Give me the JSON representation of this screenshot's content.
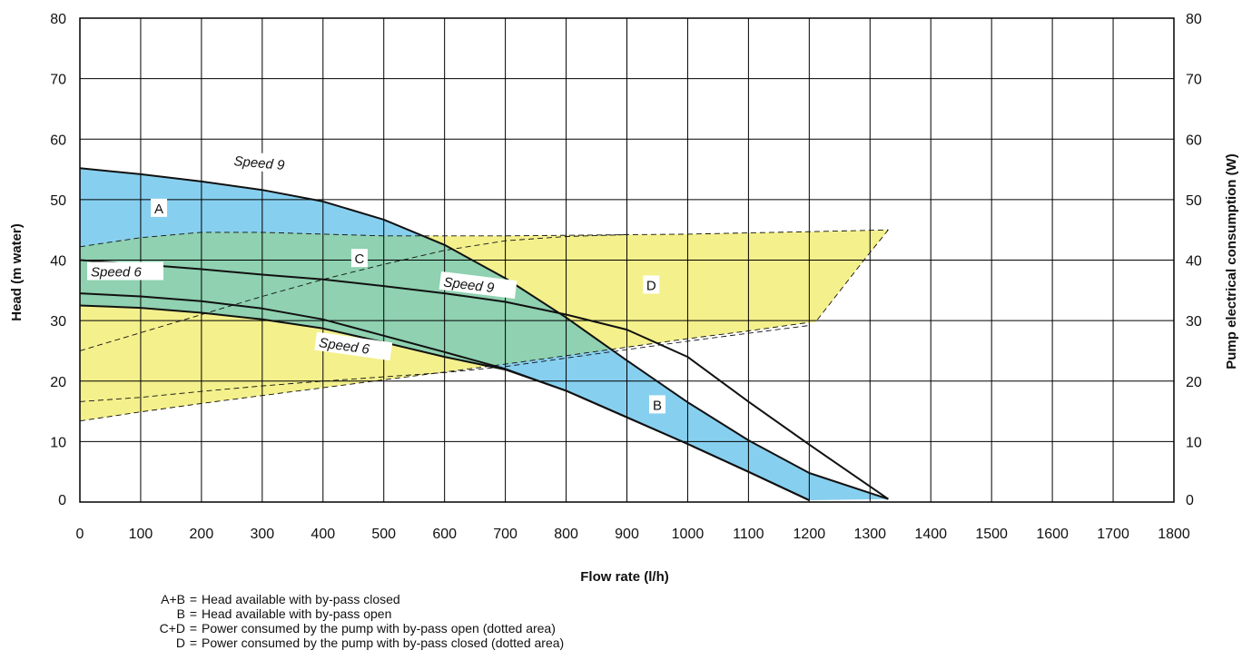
{
  "chart_data": {
    "type": "line",
    "xlabel": "Flow rate (l/h)",
    "ylabel": "Head (m water)",
    "y2label": "Pump electrical consumption (W)",
    "xlim": [
      0,
      1800
    ],
    "ylim": [
      0,
      80
    ],
    "y2lim": [
      0,
      80
    ],
    "grid": true,
    "x_ticks": [
      "0",
      "100",
      "200",
      "300",
      "400",
      "500",
      "600",
      "700",
      "800",
      "900",
      "1000",
      "1100",
      "1200",
      "1300",
      "1400",
      "1500",
      "1600",
      "1700",
      "1800"
    ],
    "y_ticks": [
      "0",
      "10",
      "20",
      "30",
      "40",
      "50",
      "60",
      "70",
      "80"
    ],
    "y2_ticks": [
      "0",
      "10",
      "20",
      "30",
      "40",
      "50",
      "60",
      "70",
      "80"
    ],
    "colors": {
      "blue": "#87cfef",
      "yellow": "#f4f08c",
      "green": "#8fd1b0",
      "line": "#111111",
      "grid": "#000000"
    },
    "series": [
      {
        "name": "Speed 9",
        "axis": "head",
        "style": "solid",
        "x": [
          0,
          100,
          200,
          300,
          400,
          500,
          600,
          700,
          800,
          900,
          1000,
          1100,
          1200,
          1330
        ],
        "y": [
          55.2,
          54.2,
          53.0,
          51.6,
          49.7,
          46.7,
          42.5,
          37.0,
          30.5,
          23.4,
          16.5,
          10.2,
          4.8,
          0.5
        ]
      },
      {
        "name": "Speed 6",
        "axis": "head",
        "style": "solid",
        "x": [
          0,
          100,
          200,
          300,
          400,
          500,
          600,
          700,
          800,
          900,
          1000,
          1100,
          1200
        ],
        "y": [
          34.5,
          34.0,
          33.2,
          32.0,
          30.2,
          27.5,
          24.8,
          22.0,
          18.4,
          14.0,
          9.6,
          5.0,
          0.3
        ]
      },
      {
        "name": "",
        "axis": "head",
        "style": "solid",
        "x": [
          0,
          100,
          200,
          300,
          400,
          500,
          600,
          700,
          800,
          900,
          1000,
          1100,
          1200
        ],
        "y": [
          32.5,
          32.1,
          31.3,
          30.2,
          28.7,
          26.4,
          24.0,
          21.9,
          18.4,
          14.0,
          9.6,
          5.0,
          0.3
        ]
      },
      {
        "name": "",
        "axis": "head",
        "style": "solid",
        "x": [
          0,
          100,
          200,
          300,
          400,
          500,
          600,
          700,
          800,
          900,
          1000,
          1100,
          1200,
          1330
        ],
        "y": [
          40.0,
          39.3,
          38.5,
          37.6,
          36.8,
          35.7,
          34.5,
          33.1,
          31.0,
          28.5,
          24.0,
          16.6,
          9.5,
          0.5
        ]
      },
      {
        "name": "",
        "axis": "power",
        "style": "dashed",
        "x": [
          0,
          100,
          200,
          300,
          400,
          500,
          600,
          700,
          800,
          900,
          1000,
          1100,
          1200,
          1330
        ],
        "y": [
          42.2,
          43.7,
          44.6,
          44.6,
          44.3,
          44.0,
          44.0,
          44.0,
          44.1,
          44.2,
          44.3,
          44.5,
          44.7,
          45.0
        ]
      },
      {
        "name": "",
        "axis": "power",
        "style": "dashed",
        "x": [
          0,
          100,
          200,
          300,
          400,
          500,
          600,
          700,
          800,
          900,
          1000,
          1100,
          1200
        ],
        "y": [
          16.6,
          17.3,
          18.3,
          19.2,
          20.0,
          20.7,
          21.4,
          22.4,
          23.8,
          25.2,
          26.6,
          27.9,
          29.2
        ]
      },
      {
        "name": "",
        "axis": "power",
        "style": "dashed",
        "x": [
          0,
          100,
          200,
          300,
          400,
          500,
          600,
          700,
          800,
          900,
          1000,
          1100,
          1200
        ],
        "y": [
          13.4,
          14.9,
          16.3,
          17.6,
          18.9,
          20.2,
          21.5,
          22.8,
          24.2,
          25.6,
          27.0,
          28.3,
          29.7
        ]
      },
      {
        "name": "",
        "axis": "power",
        "style": "dashed",
        "x": [
          0,
          100,
          200,
          300,
          400,
          500,
          600,
          700,
          800,
          900
        ],
        "y": [
          25.0,
          28.0,
          31.0,
          34.0,
          36.8,
          39.3,
          41.6,
          43.2,
          43.9,
          44.2
        ]
      }
    ],
    "regions": [
      {
        "label": "A",
        "color": "blue",
        "label_at": [
          130,
          48.5
        ]
      },
      {
        "label": "B",
        "color": "blue",
        "label_at": [
          950,
          16.0
        ]
      },
      {
        "label": "C",
        "color": "green",
        "label_at": [
          460,
          40.2
        ]
      },
      {
        "label": "D",
        "color": "yellow",
        "label_at": [
          940,
          35.8
        ]
      }
    ],
    "curve_labels": [
      {
        "text": "Speed 9",
        "at": [
          250,
          56.0
        ],
        "angle": 5
      },
      {
        "text": "Speed 9",
        "at": [
          595,
          36.0
        ],
        "angle": 7
      },
      {
        "text": "Speed 6",
        "at": [
          15,
          37.6
        ],
        "angle": 0
      },
      {
        "text": "Speed 6",
        "at": [
          390,
          26.0
        ],
        "angle": 8
      }
    ]
  },
  "legend": [
    {
      "key": "A+B",
      "text": "Head available with by-pass closed"
    },
    {
      "key": "B",
      "text": "Head available with by-pass open"
    },
    {
      "key": "C+D",
      "text": "Power consumed by the pump with by-pass open (dotted area)"
    },
    {
      "key": "D",
      "text": "Power consumed by the pump with by-pass closed (dotted area)"
    }
  ]
}
